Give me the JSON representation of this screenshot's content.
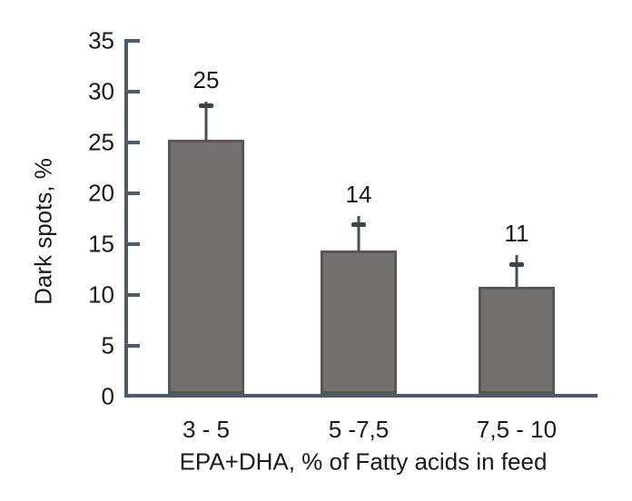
{
  "chart_data": {
    "type": "bar",
    "title": "",
    "ylabel": "Dark spots, %",
    "xlabel": "EPA+DHA, % of Fatty acids in feed",
    "categories": [
      "3 - 5",
      "5 -7,5",
      "7,5 - 10"
    ],
    "values": [
      25.3,
      14.4,
      10.8
    ],
    "bar_labels": [
      "25",
      "14",
      "11"
    ],
    "error_line_top": [
      29.0,
      17.8,
      13.9
    ],
    "error_cap": [
      28.7,
      17.0,
      13.0
    ],
    "ylim": [
      0,
      35
    ],
    "yticks": [
      0,
      5,
      10,
      15,
      20,
      25,
      30,
      35
    ],
    "grid": false,
    "legend": null,
    "colors": {
      "bar_fill": "#757070",
      "bar_border": "#5B5555",
      "axis": "#4C5B6D",
      "error_bar": "#4A4F55",
      "error_cap": "#3E434A",
      "text": "#1a1a1a"
    }
  }
}
